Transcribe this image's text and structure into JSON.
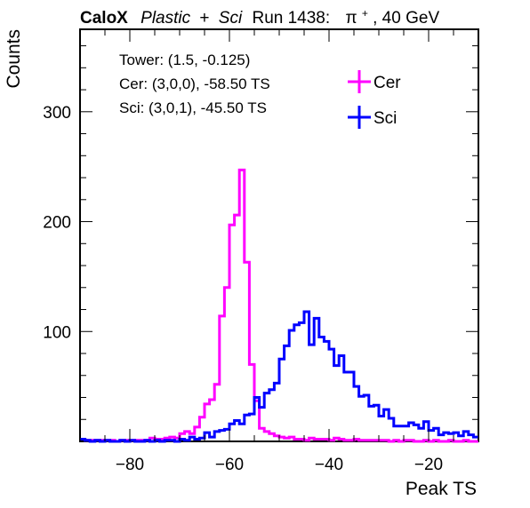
{
  "title": {
    "bold": "CaloX",
    "italic1": "Plastic",
    "plus": "+",
    "italic2": "Sci",
    "run": "Run 1438:",
    "particle": "π",
    "charge": "+",
    "energy": ", 40 GeV"
  },
  "info_box": {
    "line1": "Tower: (1.5, -0.125)",
    "line2": "Cer: (3,0,0), -58.50 TS",
    "line3": "Sci: (3,0,1), -45.50 TS"
  },
  "chart_data": {
    "type": "histogram",
    "xlabel": "Peak TS",
    "ylabel": "Counts",
    "xlim": [
      -90,
      -10
    ],
    "ylim": [
      0,
      375
    ],
    "xticks": [
      -80,
      -60,
      -40,
      -20
    ],
    "yticks": [
      100,
      200,
      300
    ],
    "grid": false,
    "legend_position": "top-right",
    "bin_width": 1,
    "series": [
      {
        "name": "Cer",
        "color": "#ff00ff",
        "bins": [
          [
            -90,
            2
          ],
          [
            -89,
            1
          ],
          [
            -88,
            1
          ],
          [
            -87,
            1
          ],
          [
            -86,
            1
          ],
          [
            -85,
            1
          ],
          [
            -84,
            1
          ],
          [
            -83,
            0
          ],
          [
            -82,
            1
          ],
          [
            -81,
            1
          ],
          [
            -80,
            1
          ],
          [
            -79,
            1
          ],
          [
            -78,
            1
          ],
          [
            -77,
            1
          ],
          [
            -76,
            3
          ],
          [
            -75,
            2
          ],
          [
            -74,
            2
          ],
          [
            -73,
            3
          ],
          [
            -72,
            4
          ],
          [
            -71,
            3
          ],
          [
            -70,
            7
          ],
          [
            -69,
            9
          ],
          [
            -68,
            7
          ],
          [
            -67,
            13
          ],
          [
            -66,
            22
          ],
          [
            -65,
            34
          ],
          [
            -64,
            38
          ],
          [
            -63,
            52
          ],
          [
            -62,
            114
          ],
          [
            -61,
            140
          ],
          [
            -60,
            197
          ],
          [
            -59,
            206
          ],
          [
            -58,
            247
          ],
          [
            -57,
            163
          ],
          [
            -56,
            70
          ],
          [
            -55,
            37
          ],
          [
            -54,
            12
          ],
          [
            -53,
            9
          ],
          [
            -52,
            7
          ],
          [
            -51,
            5
          ],
          [
            -50,
            4
          ],
          [
            -49,
            3
          ],
          [
            -48,
            4
          ],
          [
            -47,
            2
          ],
          [
            -46,
            2
          ],
          [
            -45,
            1
          ],
          [
            -44,
            3
          ],
          [
            -43,
            2
          ],
          [
            -42,
            2
          ],
          [
            -41,
            2
          ],
          [
            -40,
            1
          ],
          [
            -39,
            3
          ],
          [
            -38,
            2
          ],
          [
            -37,
            1
          ],
          [
            -36,
            1
          ],
          [
            -35,
            2
          ],
          [
            -34,
            1
          ],
          [
            -33,
            1
          ],
          [
            -32,
            1
          ],
          [
            -31,
            1
          ],
          [
            -30,
            1
          ],
          [
            -29,
            1
          ],
          [
            -28,
            0
          ],
          [
            -27,
            1
          ],
          [
            -26,
            0
          ],
          [
            -25,
            1
          ],
          [
            -24,
            1
          ],
          [
            -23,
            0
          ],
          [
            -22,
            0
          ],
          [
            -21,
            1
          ],
          [
            -20,
            0
          ],
          [
            -19,
            1
          ],
          [
            -18,
            0
          ],
          [
            -17,
            0
          ],
          [
            -16,
            1
          ],
          [
            -15,
            0
          ],
          [
            -14,
            0
          ],
          [
            -13,
            1
          ],
          [
            -12,
            0
          ],
          [
            -11,
            0
          ]
        ]
      },
      {
        "name": "Sci",
        "color": "#0000ff",
        "bins": [
          [
            -90,
            2
          ],
          [
            -89,
            1
          ],
          [
            -88,
            0
          ],
          [
            -87,
            1
          ],
          [
            -86,
            0
          ],
          [
            -85,
            1
          ],
          [
            -84,
            0
          ],
          [
            -83,
            0
          ],
          [
            -82,
            1
          ],
          [
            -81,
            0
          ],
          [
            -80,
            1
          ],
          [
            -79,
            0
          ],
          [
            -78,
            0
          ],
          [
            -77,
            1
          ],
          [
            -76,
            0
          ],
          [
            -75,
            1
          ],
          [
            -74,
            0
          ],
          [
            -73,
            1
          ],
          [
            -72,
            1
          ],
          [
            -71,
            0
          ],
          [
            -70,
            2
          ],
          [
            -69,
            1
          ],
          [
            -68,
            4
          ],
          [
            -67,
            2
          ],
          [
            -66,
            3
          ],
          [
            -65,
            8
          ],
          [
            -64,
            4
          ],
          [
            -63,
            9
          ],
          [
            -62,
            10
          ],
          [
            -61,
            11
          ],
          [
            -60,
            16
          ],
          [
            -59,
            19
          ],
          [
            -58,
            16
          ],
          [
            -57,
            24
          ],
          [
            -56,
            25
          ],
          [
            -55,
            40
          ],
          [
            -54,
            31
          ],
          [
            -53,
            44
          ],
          [
            -52,
            47
          ],
          [
            -51,
            53
          ],
          [
            -50,
            75
          ],
          [
            -49,
            87
          ],
          [
            -48,
            101
          ],
          [
            -47,
            106
          ],
          [
            -46,
            108
          ],
          [
            -45,
            118
          ],
          [
            -44,
            88
          ],
          [
            -43,
            112
          ],
          [
            -42,
            95
          ],
          [
            -41,
            91
          ],
          [
            -40,
            84
          ],
          [
            -39,
            69
          ],
          [
            -38,
            78
          ],
          [
            -37,
            63
          ],
          [
            -36,
            63
          ],
          [
            -35,
            50
          ],
          [
            -34,
            41
          ],
          [
            -33,
            42
          ],
          [
            -32,
            32
          ],
          [
            -31,
            33
          ],
          [
            -30,
            23
          ],
          [
            -29,
            29
          ],
          [
            -28,
            21
          ],
          [
            -27,
            14
          ],
          [
            -26,
            14
          ],
          [
            -25,
            14
          ],
          [
            -24,
            17
          ],
          [
            -23,
            15
          ],
          [
            -22,
            12
          ],
          [
            -21,
            18
          ],
          [
            -20,
            10
          ],
          [
            -19,
            12
          ],
          [
            -18,
            6
          ],
          [
            -17,
            8
          ],
          [
            -16,
            7
          ],
          [
            -15,
            8
          ],
          [
            -14,
            5
          ],
          [
            -13,
            9
          ],
          [
            -12,
            6
          ],
          [
            -11,
            4
          ]
        ]
      }
    ]
  }
}
